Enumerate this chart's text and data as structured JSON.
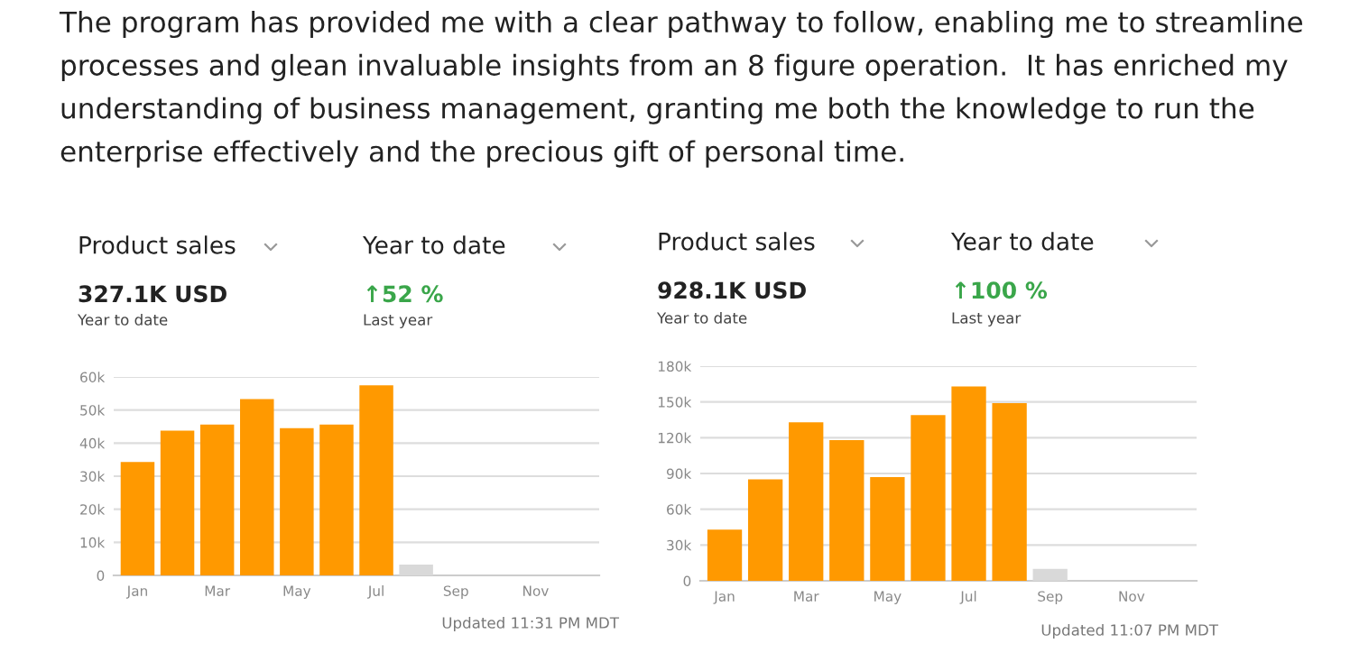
{
  "chart_data": [
    {
      "type": "bar",
      "title": "The program has provided me with a clear pathway to follow, enabling me to streamline processes and glean invaluable insights from an 8 figure operation.  It has enriched my understanding of business management, granting me both the knowledge to run the enterprise effectively and the precious gift of personal time.",
      "annotations": [
        "Product sales",
        "Year to date",
        "327.1K USD",
        "Year to date",
        "↑52 %",
        "Last year",
        "Updated 11:31 PM MDT"
      ],
      "categories": [
        "Jan",
        null,
        "Mar",
        null,
        "May",
        null,
        "Jul",
        null,
        "Sep",
        null,
        "Nov",
        null
      ],
      "values": [
        34300,
        43800,
        45600,
        53300,
        44500,
        45600,
        57500,
        3300,
        null,
        null,
        null,
        null
      ],
      "colors": [
        "#ff9900",
        "#ff9900",
        "#ff9900",
        "#ff9900",
        "#ff9900",
        "#ff9900",
        "#ff9900",
        "#d9d9d9",
        "#d9d9d9",
        "#d9d9d9",
        "#d9d9d9",
        "#d9d9d9"
      ],
      "ylim": [
        0,
        60000
      ],
      "yticks": [
        0,
        {
          "value": 10000,
          "label": "10k"
        },
        {
          "value": 20000,
          "label": "20k"
        },
        {
          "value": 30000,
          "label": "30k"
        },
        {
          "value": 40000,
          "label": "40k"
        },
        {
          "value": 50000,
          "label": "50k"
        },
        {
          "value": 60000,
          "label": "60k"
        }
      ],
      "grid": "y"
    },
    {
      "type": "bar",
      "annotations": [
        "Product sales",
        "Year to date",
        "928.1K USD",
        "Year to date",
        "↑100 %",
        "Last year",
        "Updated 11:07 PM MDT"
      ],
      "categories": [
        "Jan",
        null,
        "Mar",
        null,
        "May",
        null,
        "Jul",
        null,
        "Sep",
        null,
        "Nov",
        null
      ],
      "values": [
        43000,
        85000,
        133000,
        118000,
        87000,
        139000,
        163000,
        149000,
        10000,
        null,
        null,
        null
      ],
      "colors": [
        "#ff9900",
        "#ff9900",
        "#ff9900",
        "#ff9900",
        "#ff9900",
        "#ff9900",
        "#ff9900",
        "#ff9900",
        "#d9d9d9",
        "#d9d9d9",
        "#d9d9d9",
        "#d9d9d9"
      ],
      "ylim": [
        0,
        180000
      ],
      "yticks": [
        0,
        {
          "value": 30000,
          "label": "30k"
        },
        {
          "value": 60000,
          "label": "60k"
        },
        {
          "value": 90000,
          "label": "90k"
        },
        {
          "value": 120000,
          "label": "120k"
        },
        {
          "value": 150000,
          "label": "150k"
        },
        {
          "value": 180000,
          "label": "180k"
        }
      ],
      "grid": "y"
    }
  ]
}
